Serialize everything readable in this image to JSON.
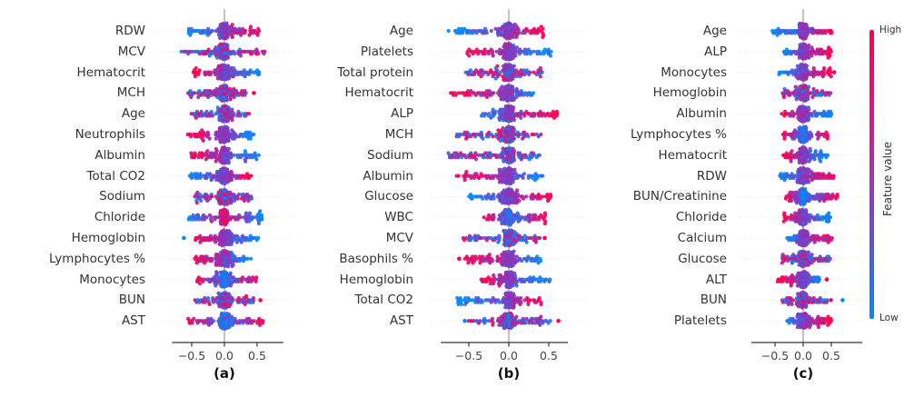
{
  "figure": {
    "background": "#ffffff",
    "colorbar": {
      "label": "Feature value",
      "high_label": "High",
      "low_label": "Low",
      "color_high": "#ff0051",
      "color_mid": "#a632b8",
      "color_low": "#008bfb"
    },
    "x_tick_labels": [
      "−0.5",
      "0.0",
      "0.5"
    ],
    "x_tick_values": [
      -0.5,
      0.0,
      0.5
    ]
  },
  "chart_data": [
    {
      "type": "scatter",
      "subtype": "shap_beeswarm_summary",
      "panel_label": "(a)",
      "xlabel": "",
      "x_ticks": [
        -0.5,
        0.0,
        0.5
      ],
      "xlim": [
        -0.8,
        0.9
      ],
      "grid": "dotted-horizontal",
      "zero_line": true,
      "features": [
        {
          "label": "RDW",
          "shap_range": [
            -0.55,
            0.55
          ],
          "color_pattern": "high-right"
        },
        {
          "label": "MCV",
          "shap_range": [
            -0.65,
            0.62
          ],
          "color_pattern": "mixed"
        },
        {
          "label": "Hematocrit",
          "shap_range": [
            -0.48,
            0.55
          ],
          "color_pattern": "high-left"
        },
        {
          "label": "MCH",
          "shap_range": [
            -0.55,
            0.35
          ],
          "color_pattern": "mixed",
          "outliers": [
            {
              "x": 0.45,
              "value": "high"
            }
          ]
        },
        {
          "label": "Age",
          "shap_range": [
            -0.5,
            0.4
          ],
          "color_pattern": "mixed"
        },
        {
          "label": "Neutrophils",
          "shap_range": [
            -0.55,
            0.45
          ],
          "color_pattern": "high-left"
        },
        {
          "label": "Albumin",
          "shap_range": [
            -0.5,
            0.55
          ],
          "color_pattern": "high-left"
        },
        {
          "label": "Total CO2",
          "shap_range": [
            -0.52,
            0.42
          ],
          "color_pattern": "high-right"
        },
        {
          "label": "Sodium",
          "shap_range": [
            -0.45,
            0.42
          ],
          "color_pattern": "mixed"
        },
        {
          "label": "Chloride",
          "shap_range": [
            -0.55,
            0.58
          ],
          "color_pattern": "low-both"
        },
        {
          "label": "Hemoglobin",
          "shap_range": [
            -0.45,
            0.52
          ],
          "color_pattern": "high-left",
          "outliers": [
            {
              "x": -0.62,
              "value": "low"
            }
          ]
        },
        {
          "label": "Lymphocytes %",
          "shap_range": [
            -0.45,
            0.42
          ],
          "color_pattern": "high-left"
        },
        {
          "label": "Monocytes",
          "shap_range": [
            -0.42,
            0.5
          ],
          "color_pattern": "high-both"
        },
        {
          "label": "BUN",
          "shap_range": [
            -0.45,
            0.45
          ],
          "color_pattern": "mixed",
          "outliers": [
            {
              "x": 0.55,
              "value": "high"
            }
          ]
        },
        {
          "label": "AST",
          "shap_range": [
            -0.55,
            0.6
          ],
          "color_pattern": "high-both"
        }
      ]
    },
    {
      "type": "scatter",
      "subtype": "shap_beeswarm_summary",
      "panel_label": "(b)",
      "xlabel": "",
      "x_ticks": [
        -0.5,
        0.0,
        0.5
      ],
      "xlim": [
        -0.85,
        0.74
      ],
      "grid": "dotted-horizontal",
      "zero_line": true,
      "features": [
        {
          "label": "Age",
          "shap_range": [
            -0.75,
            0.45
          ],
          "color_pattern": "high-right"
        },
        {
          "label": "Platelets",
          "shap_range": [
            -0.52,
            0.55
          ],
          "color_pattern": "high-left"
        },
        {
          "label": "Total protein",
          "shap_range": [
            -0.58,
            0.45
          ],
          "color_pattern": "mixed"
        },
        {
          "label": "Hematocrit",
          "shap_range": [
            -0.72,
            0.35
          ],
          "color_pattern": "high-left"
        },
        {
          "label": "ALP",
          "shap_range": [
            -0.35,
            0.62
          ],
          "color_pattern": "high-right"
        },
        {
          "label": "MCH",
          "shap_range": [
            -0.65,
            0.42
          ],
          "color_pattern": "mixed"
        },
        {
          "label": "Sodium",
          "shap_range": [
            -0.75,
            0.4
          ],
          "color_pattern": "mixed"
        },
        {
          "label": "Albumin",
          "shap_range": [
            -0.65,
            0.45
          ],
          "color_pattern": "high-left"
        },
        {
          "label": "Glucose",
          "shap_range": [
            -0.5,
            0.55
          ],
          "color_pattern": "high-right"
        },
        {
          "label": "WBC",
          "shap_range": [
            -0.32,
            0.48
          ],
          "color_pattern": "high-both"
        },
        {
          "label": "MCV",
          "shap_range": [
            -0.58,
            0.4
          ],
          "color_pattern": "mixed",
          "outliers": [
            {
              "x": 0.45,
              "value": "high"
            }
          ]
        },
        {
          "label": "Basophils %",
          "shap_range": [
            -0.55,
            0.42
          ],
          "color_pattern": "high-left",
          "outliers": [
            {
              "x": -0.62,
              "value": "high"
            }
          ]
        },
        {
          "label": "Hemoglobin",
          "shap_range": [
            -0.35,
            0.52
          ],
          "color_pattern": "high-left"
        },
        {
          "label": "Total CO2",
          "shap_range": [
            -0.65,
            0.42
          ],
          "color_pattern": "high-right"
        },
        {
          "label": "AST",
          "shap_range": [
            -0.5,
            0.55
          ],
          "color_pattern": "mixed",
          "outliers": [
            {
              "x": -0.55,
              "value": "low"
            },
            {
              "x": 0.62,
              "value": "high"
            }
          ]
        }
      ]
    },
    {
      "type": "scatter",
      "subtype": "shap_beeswarm_summary",
      "panel_label": "(c)",
      "xlabel": "",
      "x_ticks": [
        -0.5,
        0.0,
        0.5
      ],
      "xlim": [
        -0.92,
        1.05
      ],
      "grid": "dotted-horizontal",
      "zero_line": true,
      "features": [
        {
          "label": "Age",
          "shap_range": [
            -0.55,
            0.52
          ],
          "color_pattern": "high-right"
        },
        {
          "label": "ALP",
          "shap_range": [
            -0.35,
            0.5
          ],
          "color_pattern": "high-right"
        },
        {
          "label": "Monocytes",
          "shap_range": [
            -0.42,
            0.5
          ],
          "color_pattern": "high-right",
          "outliers": [
            {
              "x": 0.55,
              "value": "high"
            }
          ]
        },
        {
          "label": "Hemoglobin",
          "shap_range": [
            -0.38,
            0.5
          ],
          "color_pattern": "mixed"
        },
        {
          "label": "Albumin",
          "shap_range": [
            -0.38,
            0.5
          ],
          "color_pattern": "high-left"
        },
        {
          "label": "Lymphocytes %",
          "shap_range": [
            -0.35,
            0.45
          ],
          "color_pattern": "high-both"
        },
        {
          "label": "Hematocrit",
          "shap_range": [
            -0.35,
            0.45
          ],
          "color_pattern": "high-left"
        },
        {
          "label": "RDW",
          "shap_range": [
            -0.42,
            0.55
          ],
          "color_pattern": "high-right"
        },
        {
          "label": "BUN/Creatinine",
          "shap_range": [
            -0.3,
            0.62
          ],
          "color_pattern": "high-both"
        },
        {
          "label": "Chloride",
          "shap_range": [
            -0.35,
            0.48
          ],
          "color_pattern": "high-left"
        },
        {
          "label": "Calcium",
          "shap_range": [
            -0.3,
            0.52
          ],
          "color_pattern": "high-right"
        },
        {
          "label": "Glucose",
          "shap_range": [
            -0.38,
            0.48
          ],
          "color_pattern": "mixed"
        },
        {
          "label": "ALT",
          "shap_range": [
            -0.48,
            0.3
          ],
          "color_pattern": "high-left",
          "outliers": [
            {
              "x": 0.42,
              "value": "high"
            }
          ]
        },
        {
          "label": "BUN",
          "shap_range": [
            -0.38,
            0.5
          ],
          "color_pattern": "mixed",
          "outliers": [
            {
              "x": 0.7,
              "value": "low"
            }
          ]
        },
        {
          "label": "Platelets",
          "shap_range": [
            -0.28,
            0.5
          ],
          "color_pattern": "high-right"
        }
      ]
    }
  ]
}
